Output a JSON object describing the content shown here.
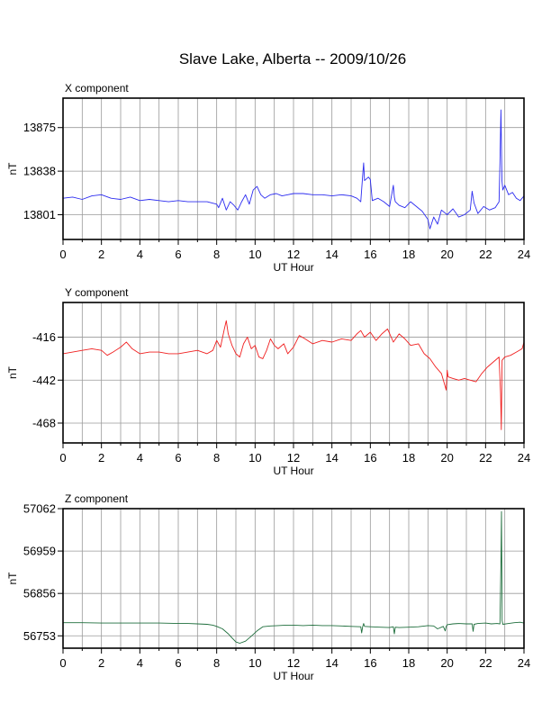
{
  "figure": {
    "title": "Slave Lake, Alberta -- 2009/10/26"
  },
  "chart_data": [
    {
      "type": "line",
      "title": "X component",
      "xlabel": "UT Hour",
      "ylabel": "nT",
      "xlim": [
        0,
        24
      ],
      "ylim": [
        13780,
        13900
      ],
      "x_ticks": [
        0,
        2,
        4,
        6,
        8,
        10,
        12,
        14,
        16,
        18,
        20,
        22,
        24
      ],
      "y_ticks": [
        13801,
        13838,
        13875
      ],
      "grid": true,
      "color": "#2c2cf0",
      "series": [
        {
          "x": [
            0,
            0.5,
            1,
            1.5,
            2,
            2.5,
            3,
            3.5,
            4,
            4.5,
            5,
            5.5,
            6,
            6.5,
            7,
            7.5,
            8,
            8.1,
            8.3,
            8.5,
            8.7,
            8.9,
            9.1,
            9.3,
            9.5,
            9.7,
            9.9,
            10.1,
            10.3,
            10.5,
            10.8,
            11.1,
            11.4,
            11.7,
            12,
            12.5,
            13,
            13.5,
            14,
            14.5,
            15,
            15.3,
            15.5,
            15.6,
            15.65,
            15.7,
            15.9,
            16.0,
            16.1,
            16.4,
            16.7,
            17.0,
            17.2,
            17.25,
            17.3,
            17.5,
            17.8,
            18.1,
            18.4,
            18.7,
            19.0,
            19.1,
            19.3,
            19.5,
            19.7,
            20.0,
            20.3,
            20.6,
            20.9,
            21.2,
            21.3,
            21.4,
            21.6,
            21.9,
            22.2,
            22.5,
            22.7,
            22.75,
            22.8,
            22.85,
            22.9,
            23.0,
            23.2,
            23.4,
            23.6,
            23.8,
            24
          ],
          "y": [
            13815,
            13816,
            13814,
            13817,
            13818,
            13815,
            13814,
            13816,
            13813,
            13814,
            13813,
            13812,
            13813,
            13812,
            13812,
            13812,
            13810,
            13807,
            13815,
            13805,
            13812,
            13809,
            13805,
            13812,
            13818,
            13810,
            13822,
            13825,
            13818,
            13815,
            13818,
            13819,
            13817,
            13818,
            13819,
            13819,
            13818,
            13818,
            13817,
            13818,
            13817,
            13815,
            13812,
            13834,
            13845,
            13830,
            13833,
            13831,
            13813,
            13815,
            13812,
            13808,
            13826,
            13816,
            13812,
            13809,
            13807,
            13812,
            13808,
            13804,
            13797,
            13789,
            13799,
            13793,
            13805,
            13801,
            13806,
            13799,
            13801,
            13805,
            13821,
            13811,
            13802,
            13808,
            13805,
            13807,
            13812,
            13845,
            13890,
            13830,
            13822,
            13826,
            13818,
            13820,
            13815,
            13813,
            13817
          ]
        }
      ]
    },
    {
      "type": "line",
      "title": "Y component",
      "xlabel": "UT Hour",
      "ylabel": "nT",
      "xlim": [
        0,
        24
      ],
      "ylim": [
        -480,
        -395
      ],
      "x_ticks": [
        0,
        2,
        4,
        6,
        8,
        10,
        12,
        14,
        16,
        18,
        20,
        22,
        24
      ],
      "y_ticks": [
        -468,
        -442,
        -416
      ],
      "grid": true,
      "color": "#f02020",
      "series": [
        {
          "x": [
            0,
            0.5,
            1,
            1.5,
            2,
            2.3,
            2.6,
            3,
            3.3,
            3.6,
            4,
            4.5,
            5,
            5.5,
            6,
            6.5,
            7,
            7.5,
            7.8,
            8.0,
            8.2,
            8.4,
            8.5,
            8.6,
            8.8,
            9.0,
            9.2,
            9.4,
            9.6,
            9.8,
            10.0,
            10.2,
            10.4,
            10.6,
            10.8,
            11.0,
            11.2,
            11.5,
            11.7,
            12.0,
            12.3,
            12.6,
            13.0,
            13.5,
            14.0,
            14.5,
            15.0,
            15.3,
            15.5,
            15.7,
            16.0,
            16.3,
            16.6,
            16.9,
            17.2,
            17.5,
            17.8,
            18.1,
            18.5,
            18.8,
            19.1,
            19.4,
            19.7,
            19.95,
            20.0,
            20.05,
            20.3,
            20.6,
            20.9,
            21.2,
            21.5,
            21.8,
            22.1,
            22.4,
            22.7,
            22.78,
            22.82,
            22.86,
            23.0,
            23.3,
            23.6,
            23.9,
            24
          ],
          "y": [
            -426,
            -425,
            -424,
            -423,
            -424,
            -427,
            -425,
            -422,
            -419,
            -423,
            -426,
            -425,
            -425,
            -426,
            -426,
            -425,
            -424,
            -426,
            -424,
            -418,
            -422,
            -411,
            -406,
            -414,
            -421,
            -426,
            -428,
            -420,
            -416,
            -423,
            -421,
            -428,
            -429,
            -424,
            -417,
            -421,
            -423,
            -420,
            -426,
            -422,
            -415,
            -417,
            -420,
            -418,
            -419,
            -417,
            -418,
            -414,
            -412,
            -416,
            -413,
            -418,
            -414,
            -411,
            -419,
            -414,
            -417,
            -421,
            -420,
            -426,
            -429,
            -434,
            -438,
            -448,
            -436,
            -440,
            -441,
            -442,
            -441,
            -442,
            -443,
            -438,
            -434,
            -431,
            -428,
            -450,
            -472,
            -430,
            -428,
            -427,
            -425,
            -423,
            -419
          ]
        }
      ]
    },
    {
      "type": "line",
      "title": "Z component",
      "xlabel": "UT Hour",
      "ylabel": "nT",
      "xlim": [
        0,
        24
      ],
      "ylim": [
        56723,
        57062
      ],
      "x_ticks": [
        0,
        2,
        4,
        6,
        8,
        10,
        12,
        14,
        16,
        18,
        20,
        22,
        24
      ],
      "y_ticks": [
        56753,
        56856,
        56959,
        57062
      ],
      "grid": true,
      "color": "#1e6e3c",
      "series": [
        {
          "x": [
            0,
            1,
            2,
            3,
            4,
            5,
            6,
            6.5,
            7,
            7.5,
            7.8,
            8.0,
            8.3,
            8.6,
            8.8,
            9.0,
            9.2,
            9.5,
            9.8,
            10.1,
            10.4,
            10.8,
            11.2,
            11.6,
            12.0,
            12.5,
            13,
            13.5,
            14,
            14.5,
            15.0,
            15.5,
            15.55,
            15.6,
            15.65,
            15.7,
            16.0,
            16.5,
            17.0,
            17.2,
            17.25,
            17.3,
            17.5,
            18.0,
            18.5,
            19.0,
            19.3,
            19.5,
            19.8,
            19.9,
            19.95,
            20.0,
            20.3,
            20.6,
            21.0,
            21.3,
            21.35,
            21.4,
            21.6,
            22.0,
            22.3,
            22.6,
            22.75,
            22.8,
            22.83,
            22.86,
            22.9,
            23.2,
            23.5,
            23.8,
            24
          ],
          "y": [
            56785,
            56785,
            56784,
            56784,
            56784,
            56784,
            56783,
            56783,
            56782,
            56781,
            56779,
            56776,
            56770,
            56758,
            56748,
            56738,
            56735,
            56740,
            56752,
            56765,
            56775,
            56777,
            56778,
            56779,
            56779,
            56778,
            56779,
            56778,
            56778,
            56777,
            56776,
            56775,
            56760,
            56775,
            56783,
            56776,
            56775,
            56774,
            56773,
            56775,
            56758,
            56774,
            56773,
            56774,
            56775,
            56778,
            56777,
            56770,
            56776,
            56765,
            56776,
            56780,
            56782,
            56783,
            56782,
            56782,
            56764,
            56781,
            56783,
            56784,
            56782,
            56783,
            56782,
            56930,
            57055,
            56790,
            56781,
            56783,
            56785,
            56786,
            56784
          ]
        }
      ]
    }
  ]
}
